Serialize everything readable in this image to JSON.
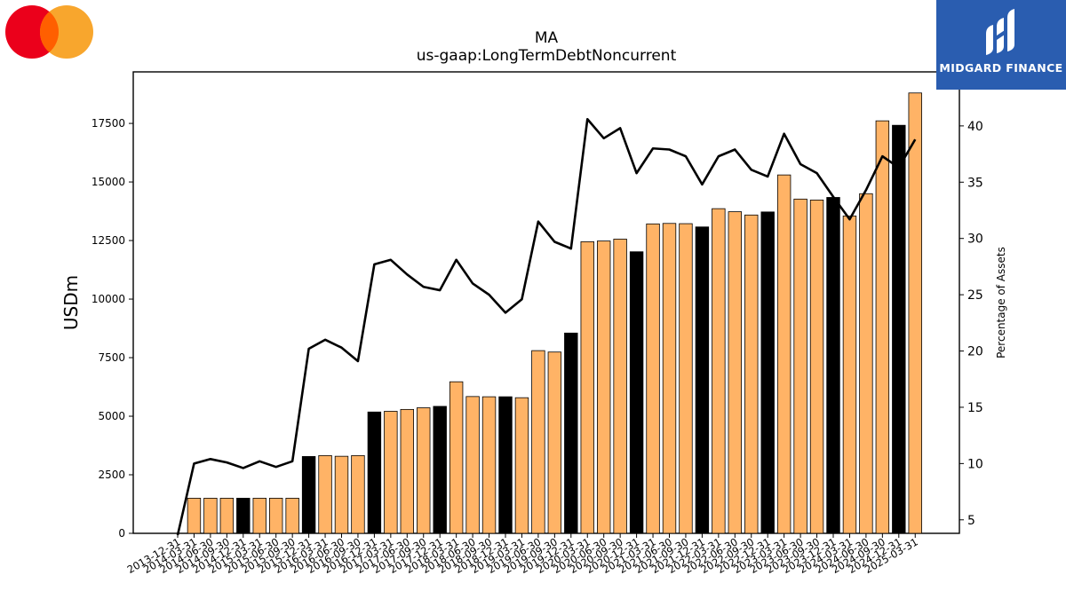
{
  "header": {
    "title": "MA",
    "subtitle": "us-gaap:LongTermDebtNoncurrent"
  },
  "branding": {
    "left_logo": "mastercard-logo",
    "right_logo_text": "MIDGARD FINANCE",
    "right_logo_color": "#2a5db0"
  },
  "colors": {
    "bar_normal": "#ffb366",
    "bar_year_end": "#000000",
    "line": "#000000"
  },
  "chart_data": {
    "type": "bar",
    "title": "MA",
    "subtitle": "us-gaap:LongTermDebtNoncurrent",
    "ylabel": "USDm",
    "y2label": "Percentage of Assets",
    "ylim": [
      0,
      19700
    ],
    "y2lim": [
      3.8,
      44.8
    ],
    "yticks": [
      0,
      2500,
      5000,
      7500,
      10000,
      12500,
      15000,
      17500
    ],
    "y2ticks": [
      5,
      10,
      15,
      20,
      25,
      30,
      35,
      40
    ],
    "grid": false,
    "legend": "none",
    "categories": [
      "2013-12-31",
      "2014-03-31",
      "2014-06-30",
      "2014-09-30",
      "2014-12-31",
      "2015-03-31",
      "2015-06-30",
      "2015-09-30",
      "2015-12-31",
      "2016-03-31",
      "2016-06-30",
      "2016-09-30",
      "2016-12-31",
      "2017-03-31",
      "2017-06-30",
      "2017-09-30",
      "2017-12-31",
      "2018-03-31",
      "2018-06-30",
      "2018-09-30",
      "2018-12-31",
      "2019-03-31",
      "2019-06-30",
      "2019-09-30",
      "2019-12-31",
      "2020-03-31",
      "2020-06-30",
      "2020-09-30",
      "2020-12-31",
      "2021-03-31",
      "2021-06-30",
      "2021-09-30",
      "2021-12-31",
      "2022-03-31",
      "2022-06-30",
      "2022-09-30",
      "2022-12-31",
      "2023-03-31",
      "2023-06-30",
      "2023-09-30",
      "2023-12-31",
      "2024-03-31",
      "2024-06-30",
      "2024-09-30",
      "2024-12-31",
      "2025-03-31"
    ],
    "series": [
      {
        "values": [
          0,
          1500,
          1500,
          1500,
          1500,
          1500,
          1500,
          1500,
          3280,
          3320,
          3290,
          3320,
          5180,
          5210,
          5290,
          5360,
          5420,
          6470,
          5840,
          5830,
          5830,
          5790,
          7800,
          7740,
          8550,
          12450,
          12480,
          12560,
          12020,
          13210,
          13230,
          13220,
          13080,
          13860,
          13730,
          13590,
          13720,
          15300,
          14270,
          14230,
          14340,
          13550,
          14500,
          17610,
          17420,
          18800
        ]
      },
      {
        "values": [
          3.5,
          10.0,
          10.4,
          10.1,
          9.6,
          10.2,
          9.7,
          10.2,
          20.2,
          21.0,
          20.3,
          19.1,
          27.7,
          28.1,
          26.8,
          25.7,
          25.4,
          28.1,
          26.0,
          25.0,
          23.4,
          24.6,
          31.5,
          29.7,
          29.1,
          40.6,
          38.9,
          39.8,
          35.8,
          38.0,
          37.9,
          37.3,
          34.8,
          37.3,
          37.9,
          36.1,
          35.5,
          39.3,
          36.6,
          35.8,
          33.7,
          31.7,
          34.3,
          37.3,
          36.3,
          38.8
        ]
      }
    ]
  }
}
